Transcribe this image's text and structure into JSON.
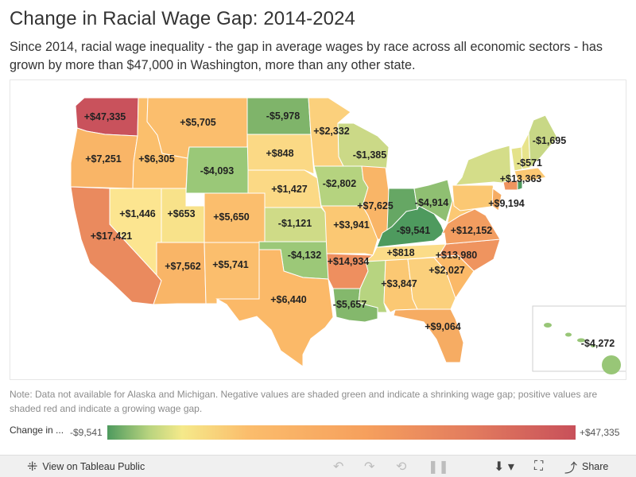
{
  "title": "Change in Racial Wage Gap: 2014-2024",
  "subtitle": "Since 2014, racial wage inequality - the gap in average wages by race across all economic sectors - has grown by more than $47,000 in Washington, more than any other state.",
  "map": {
    "states": [
      {
        "id": "WA",
        "label": "+$47,335",
        "value": 47335,
        "color": "#c9525c"
      },
      {
        "id": "OR",
        "label": "+$7,251",
        "value": 7251,
        "color": "#f9b567"
      },
      {
        "id": "CA",
        "label": "+$17,421",
        "value": 17421,
        "color": "#ea8a5e"
      },
      {
        "id": "ID",
        "label": "+$6,305",
        "value": 6305,
        "color": "#fbbf6c"
      },
      {
        "id": "NV",
        "label": "+$1,446",
        "value": 1446,
        "color": "#fce590"
      },
      {
        "id": "UT",
        "label": "+$653",
        "value": 653,
        "color": "#f8e28a"
      },
      {
        "id": "AZ",
        "label": "+$7,562",
        "value": 7562,
        "color": "#f9b567"
      },
      {
        "id": "MT",
        "label": "+$5,705",
        "value": 5705,
        "color": "#fbbe6d"
      },
      {
        "id": "WY",
        "label": "-$4,093",
        "value": -4093,
        "color": "#9ac878"
      },
      {
        "id": "CO",
        "label": "+$5,650",
        "value": 5650,
        "color": "#fbbe6d"
      },
      {
        "id": "NM",
        "label": "+$5,741",
        "value": 5741,
        "color": "#fbbe6d"
      },
      {
        "id": "ND",
        "label": "-$5,978",
        "value": -5978,
        "color": "#7fb46a"
      },
      {
        "id": "SD",
        "label": "+$848",
        "value": 848,
        "color": "#fbd985"
      },
      {
        "id": "NE",
        "label": "+$1,427",
        "value": 1427,
        "color": "#fbd985"
      },
      {
        "id": "KS",
        "label": "-$1,121",
        "value": -1121,
        "color": "#cfdb87"
      },
      {
        "id": "OK",
        "label": "-$4,132",
        "value": -4132,
        "color": "#9cc878"
      },
      {
        "id": "TX",
        "label": "+$6,440",
        "value": 6440,
        "color": "#fbb968"
      },
      {
        "id": "MN",
        "label": "+$2,332",
        "value": 2332,
        "color": "#fbd07c"
      },
      {
        "id": "IA",
        "label": "-$2,802",
        "value": -2802,
        "color": "#b5d37f"
      },
      {
        "id": "MO",
        "label": "+$3,941",
        "value": 3941,
        "color": "#fbc873"
      },
      {
        "id": "AR",
        "label": "+$14,934",
        "value": 14934,
        "color": "#ee8f5f"
      },
      {
        "id": "LA",
        "label": "-$5,657",
        "value": -5657,
        "color": "#84b86c"
      },
      {
        "id": "WI",
        "label": "-$1,385",
        "value": -1385,
        "color": "#cbd987"
      },
      {
        "id": "IL",
        "label": "+$7,625",
        "value": 7625,
        "color": "#f9b567"
      },
      {
        "id": "MS",
        "label": "",
        "value": null,
        "color": "#b7d480"
      },
      {
        "id": "AL",
        "label": "+$3,847",
        "value": 3847,
        "color": "#fbc873"
      },
      {
        "id": "TN",
        "label": "+$818",
        "value": 818,
        "color": "#fbdc88"
      },
      {
        "id": "KY",
        "label": "-$9,541",
        "value": -9541,
        "color": "#4e9a5e"
      },
      {
        "id": "IN",
        "label": "",
        "value": null,
        "color": "#66a764"
      },
      {
        "id": "OH",
        "label": "-$4,914",
        "value": -4914,
        "color": "#8fbf72"
      },
      {
        "id": "GA",
        "label": "+$2,027",
        "value": 2027,
        "color": "#fbd07c"
      },
      {
        "id": "FL",
        "label": "+$9,064",
        "value": 9064,
        "color": "#f6ac63"
      },
      {
        "id": "SC",
        "label": "",
        "value": null,
        "color": "#fbb968"
      },
      {
        "id": "NC",
        "label": "+$13,980",
        "value": 13980,
        "color": "#ef945f"
      },
      {
        "id": "VA",
        "label": "+$12,152",
        "value": 12152,
        "color": "#f29d60"
      },
      {
        "id": "WV",
        "label": "",
        "value": null,
        "color": "#fbc873"
      },
      {
        "id": "PA",
        "label": "",
        "value": null,
        "color": "#fbc873"
      },
      {
        "id": "NY",
        "label": "",
        "value": null,
        "color": "#d4dd89"
      },
      {
        "id": "NJ",
        "label": "+$9,194",
        "value": 9194,
        "color": "#f6ac63"
      },
      {
        "id": "CT",
        "label": "+$13,363",
        "value": 13363,
        "color": "#ef945f"
      },
      {
        "id": "VT",
        "label": "-$571",
        "value": -571,
        "color": "#e4e28a"
      },
      {
        "id": "NH",
        "label": "",
        "value": null,
        "color": "#e8e48c"
      },
      {
        "id": "ME",
        "label": "-$1,695",
        "value": -1695,
        "color": "#c8d886"
      },
      {
        "id": "MA",
        "label": "",
        "value": null,
        "color": "#fbc873"
      },
      {
        "id": "RI",
        "label": "",
        "value": null,
        "color": "#4e9a5e"
      },
      {
        "id": "HI",
        "label": "-$4,272",
        "value": -4272,
        "color": "#98c677"
      }
    ]
  },
  "note": "Note: Data not available for Alaska and Michigan. Negative values are shaded green and indicate a shrinking wage gap; positive values are shaded red and indicate a growing wage gap.",
  "legend": {
    "title": "Change in ...",
    "min": "-$9,541",
    "max": "+$47,335",
    "min_color": "#4e9a5e",
    "max_color": "#c8505a"
  },
  "toolbar": {
    "view_label": "View on Tableau Public",
    "share_label": "Share",
    "icons": [
      "tableau-icon",
      "undo-icon",
      "redo-icon",
      "revert-icon",
      "pause-icon",
      "download-icon",
      "fullscreen-icon",
      "share-icon"
    ]
  }
}
